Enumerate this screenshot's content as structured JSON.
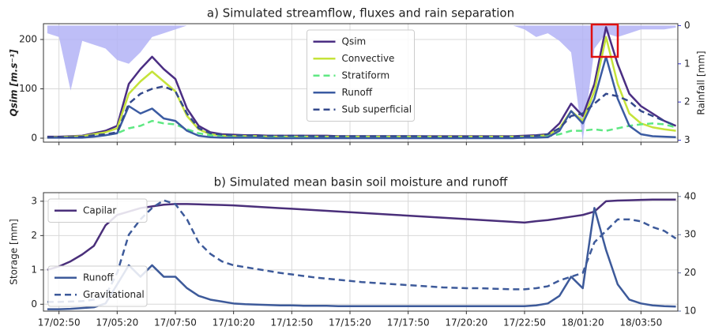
{
  "chart_data": [
    {
      "type": "line",
      "title": "a) Simulated streamflow, fluxes and rain separation",
      "ylabel": "Qsim [m.s⁻¹]",
      "y2label": "Rainfall [mm]",
      "y2_color": "#2f2fe0",
      "x": [
        "17/02:20",
        "17/02:50",
        "17/03:20",
        "17/03:50",
        "17/04:20",
        "17/04:50",
        "17/05:20",
        "17/05:50",
        "17/06:20",
        "17/06:50",
        "17/07:20",
        "17/07:50",
        "17/08:20",
        "17/08:50",
        "17/09:20",
        "17/09:50",
        "17/10:20",
        "17/10:50",
        "17/11:20",
        "17/11:50",
        "17/12:20",
        "17/12:50",
        "17/13:20",
        "17/13:50",
        "17/14:20",
        "17/14:50",
        "17/15:20",
        "17/15:50",
        "17/16:20",
        "17/16:50",
        "17/17:20",
        "17/17:50",
        "17/18:20",
        "17/18:50",
        "17/19:20",
        "17/19:50",
        "17/20:20",
        "17/20:50",
        "17/21:20",
        "17/21:50",
        "17/22:20",
        "17/22:50",
        "17/23:20",
        "17/23:50",
        "18/00:20",
        "18/00:50",
        "18/01:20",
        "18/01:50",
        "18/02:20",
        "18/02:50",
        "18/03:20",
        "18/03:50",
        "18/04:20",
        "18/04:50",
        "18/05:20"
      ],
      "xlim": [
        "17/02:10",
        "18/05:25"
      ],
      "xticks": [
        "17/02:50",
        "17/05:20",
        "17/07:50",
        "17/10:20",
        "17/12:50",
        "17/15:20",
        "17/17:50",
        "17/20:20",
        "17/22:50",
        "18/01:20",
        "18/03:50"
      ],
      "ylim": [
        -8,
        232
      ],
      "yticks": [
        0,
        100,
        200
      ],
      "y2lim": [
        3.05,
        -0.05
      ],
      "y2ticks": [
        0,
        1,
        2,
        3
      ],
      "grid": true,
      "legend": "upper center",
      "series": [
        {
          "name": "Rainfall",
          "type": "area",
          "axis": "y2",
          "color": "#b3b3f6",
          "values": [
            0.2,
            0.3,
            1.7,
            0.4,
            0.5,
            0.6,
            0.9,
            1.0,
            0.7,
            0.3,
            0.2,
            0.1,
            0,
            0,
            0,
            0,
            0,
            0,
            0,
            0,
            0,
            0,
            0,
            0,
            0,
            0,
            0,
            0,
            0,
            0,
            0,
            0,
            0,
            0,
            0,
            0,
            0,
            0,
            0,
            0,
            0,
            0.1,
            0.3,
            0.2,
            0.4,
            0.7,
            3.0,
            0.6,
            0.2,
            0.3,
            0.2,
            0.1,
            0.1,
            0.1,
            0.05
          ]
        },
        {
          "name": "Qsim",
          "color": "#4b2e83",
          "values": [
            3,
            3,
            4,
            5,
            10,
            15,
            25,
            110,
            140,
            165,
            140,
            120,
            60,
            25,
            12,
            8,
            7,
            6,
            6,
            5,
            5,
            5,
            5,
            5,
            5,
            4,
            4,
            4,
            4,
            4,
            4,
            4,
            4,
            4,
            4,
            4,
            4,
            4,
            4,
            4,
            4,
            5,
            6,
            8,
            30,
            70,
            45,
            110,
            225,
            150,
            90,
            65,
            50,
            35,
            25
          ]
        },
        {
          "name": "Convective",
          "color": "#c5e33a",
          "values": [
            2,
            2,
            3,
            4,
            8,
            12,
            20,
            90,
            115,
            135,
            115,
            95,
            45,
            18,
            8,
            5,
            4,
            4,
            4,
            3,
            3,
            3,
            3,
            3,
            3,
            3,
            3,
            3,
            3,
            3,
            3,
            3,
            3,
            3,
            3,
            3,
            3,
            3,
            3,
            3,
            3,
            3,
            4,
            6,
            20,
            55,
            35,
            95,
            205,
            110,
            50,
            30,
            22,
            18,
            15
          ]
        },
        {
          "name": "Stratiform",
          "color": "#5fe883",
          "dashed": true,
          "values": [
            2,
            2,
            2,
            2,
            4,
            6,
            10,
            20,
            25,
            35,
            30,
            28,
            18,
            10,
            6,
            4,
            3,
            3,
            3,
            3,
            3,
            3,
            3,
            3,
            2,
            2,
            2,
            2,
            2,
            2,
            2,
            2,
            2,
            2,
            2,
            2,
            2,
            2,
            2,
            2,
            2,
            2,
            3,
            4,
            8,
            15,
            15,
            18,
            15,
            20,
            25,
            28,
            30,
            28,
            22
          ]
        },
        {
          "name": "Runoff",
          "color": "#3b5ba2",
          "values": [
            1,
            1,
            1,
            1,
            3,
            6,
            10,
            65,
            50,
            60,
            40,
            35,
            15,
            5,
            2,
            1,
            1,
            1,
            1,
            0,
            0,
            0,
            0,
            0,
            0,
            0,
            0,
            0,
            0,
            0,
            0,
            0,
            0,
            0,
            0,
            0,
            0,
            0,
            0,
            0,
            0,
            1,
            1,
            2,
            15,
            55,
            30,
            80,
            165,
            80,
            25,
            8,
            4,
            3,
            2
          ]
        },
        {
          "name": "Sub superficial",
          "color": "#34498c",
          "dashed": true,
          "values": [
            2,
            2,
            2,
            3,
            6,
            8,
            12,
            70,
            90,
            100,
            105,
            95,
            50,
            20,
            10,
            7,
            6,
            6,
            5,
            5,
            5,
            5,
            5,
            4,
            4,
            4,
            4,
            4,
            4,
            4,
            4,
            4,
            4,
            3,
            3,
            3,
            3,
            3,
            3,
            3,
            3,
            4,
            5,
            8,
            20,
            45,
            50,
            70,
            90,
            85,
            75,
            55,
            45,
            35,
            25
          ]
        }
      ]
    },
    {
      "type": "line",
      "title": "b) Simulated mean basin soil moisture and runoff",
      "ylabel": "Storage [mm]",
      "y_color": "#5c6ea6",
      "y2_color": "#5c6ea6",
      "x": [
        "17/02:20",
        "17/02:50",
        "17/03:20",
        "17/03:50",
        "17/04:20",
        "17/04:50",
        "17/05:20",
        "17/05:50",
        "17/06:20",
        "17/06:50",
        "17/07:20",
        "17/07:50",
        "17/08:20",
        "17/08:50",
        "17/09:20",
        "17/09:50",
        "17/10:20",
        "17/10:50",
        "17/11:20",
        "17/11:50",
        "17/12:20",
        "17/12:50",
        "17/13:20",
        "17/13:50",
        "17/14:20",
        "17/14:50",
        "17/15:20",
        "17/15:50",
        "17/16:20",
        "17/16:50",
        "17/17:20",
        "17/17:50",
        "17/18:20",
        "17/18:50",
        "17/19:20",
        "17/19:50",
        "17/20:20",
        "17/20:50",
        "17/21:20",
        "17/21:50",
        "17/22:20",
        "17/22:50",
        "17/23:20",
        "17/23:50",
        "18/00:20",
        "18/00:50",
        "18/01:20",
        "18/01:50",
        "18/02:20",
        "18/02:50",
        "18/03:20",
        "18/03:50",
        "18/04:20",
        "18/04:50",
        "18/05:20"
      ],
      "xlim": [
        "17/02:10",
        "18/05:25"
      ],
      "xticks": [
        "17/02:50",
        "17/05:20",
        "17/07:50",
        "17/10:20",
        "17/12:50",
        "17/15:20",
        "17/17:50",
        "17/20:20",
        "17/22:50",
        "18/01:20",
        "18/03:50"
      ],
      "ylim": [
        -0.2,
        3.25
      ],
      "yticks": [
        0,
        1,
        2,
        3
      ],
      "y2lim": [
        10,
        41
      ],
      "y2ticks": [
        10,
        20,
        30,
        40
      ],
      "grid": true,
      "series": [
        {
          "name": "Capilar",
          "color": "#4a2f7a",
          "legend": "upper left",
          "values": [
            1.0,
            1.1,
            1.25,
            1.45,
            1.7,
            2.3,
            2.6,
            2.7,
            2.8,
            2.85,
            2.9,
            2.92,
            2.92,
            2.91,
            2.9,
            2.89,
            2.88,
            2.86,
            2.84,
            2.82,
            2.8,
            2.78,
            2.76,
            2.74,
            2.72,
            2.7,
            2.68,
            2.66,
            2.64,
            2.62,
            2.6,
            2.58,
            2.56,
            2.54,
            2.52,
            2.5,
            2.48,
            2.46,
            2.44,
            2.42,
            2.4,
            2.38,
            2.42,
            2.45,
            2.5,
            2.55,
            2.6,
            2.7,
            3.0,
            3.02,
            3.03,
            3.04,
            3.05,
            3.05,
            3.05
          ]
        },
        {
          "name": "Runoff",
          "color": "#3d5a9a",
          "axis": "y2",
          "legend": "lower left",
          "values": [
            10.5,
            10.5,
            10.6,
            10.8,
            11,
            12,
            17,
            22,
            19,
            22,
            19,
            19,
            16,
            14,
            13,
            12.5,
            12,
            11.8,
            11.7,
            11.6,
            11.5,
            11.5,
            11.4,
            11.4,
            11.4,
            11.3,
            11.3,
            11.3,
            11.3,
            11.3,
            11.3,
            11.3,
            11.3,
            11.3,
            11.3,
            11.3,
            11.3,
            11.3,
            11.3,
            11.3,
            11.3,
            11.3,
            11.5,
            12,
            14,
            19,
            16,
            37,
            26,
            17,
            13,
            12,
            11.5,
            11.3,
            11.2
          ]
        },
        {
          "name": "Gravitational",
          "color": "#3d5a9a",
          "axis": "y2",
          "dashed": true,
          "legend": "lower left",
          "values": [
            12.4,
            12.4,
            12.5,
            12.6,
            13,
            14,
            20,
            30,
            34,
            37,
            39,
            38,
            34,
            28,
            25,
            23,
            22,
            21.5,
            21,
            20.5,
            20,
            19.6,
            19.2,
            18.8,
            18.5,
            18.2,
            17.9,
            17.6,
            17.4,
            17.2,
            17,
            16.8,
            16.6,
            16.4,
            16.2,
            16.1,
            16,
            16,
            15.9,
            15.8,
            15.7,
            15.7,
            16,
            16.5,
            18,
            19,
            20,
            28,
            31,
            34,
            34,
            33.5,
            32,
            31,
            29
          ]
        }
      ]
    }
  ]
}
